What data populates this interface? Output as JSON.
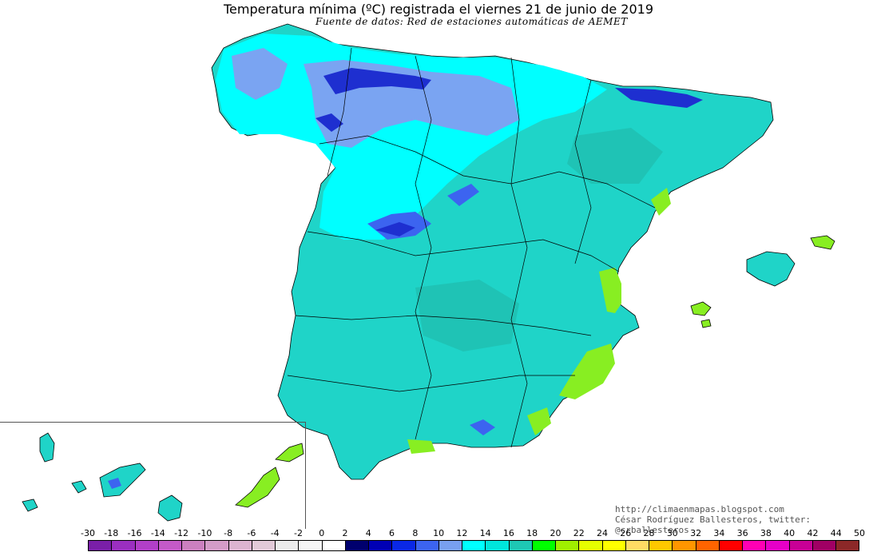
{
  "title": "Temperatura mínima (ºC) registrada el viernes 21 de junio de 2019",
  "subtitle": "Fuente de datos: Red de estaciones automáticas de AEMET",
  "credits": {
    "url": "http://climaenmapas.blogspot.com",
    "author": "César Rodríguez Ballesteros, twitter: @crballesteros"
  },
  "legend": {
    "ticks": [
      "-30",
      "-18",
      "-16",
      "-14",
      "-12",
      "-10",
      "-8",
      "-6",
      "-4",
      "-2",
      "0",
      "2",
      "4",
      "6",
      "8",
      "10",
      "12",
      "14",
      "16",
      "18",
      "20",
      "22",
      "24",
      "26",
      "28",
      "30",
      "32",
      "34",
      "36",
      "38",
      "40",
      "42",
      "44",
      "50"
    ],
    "colors": [
      "#7a1fa8",
      "#9b2fc0",
      "#b23fc8",
      "#c45ac8",
      "#cc80c0",
      "#d49cc8",
      "#dcb4d0",
      "#e2cad8",
      "#ececec",
      "#f6f6f6",
      "#ffffff",
      "#00006e",
      "#0000b4",
      "#0a28e6",
      "#3c64f0",
      "#78a0f0",
      "#00ffff",
      "#00e6dc",
      "#1ec8b4",
      "#00ff00",
      "#a0f000",
      "#e6ff00",
      "#ffff00",
      "#ffdc64",
      "#ffc800",
      "#ff9600",
      "#ff6400",
      "#ff0000",
      "#ff00b4",
      "#e600c8",
      "#c80096",
      "#a00064",
      "#8c2828"
    ]
  },
  "colors": {
    "land_main": "#1fd4c8",
    "land_cool": "#00ffff",
    "land_cold": "#7aa4f2",
    "land_coldest": "#1e2fd0",
    "land_warm": "#88ee22",
    "border": "#000000"
  }
}
